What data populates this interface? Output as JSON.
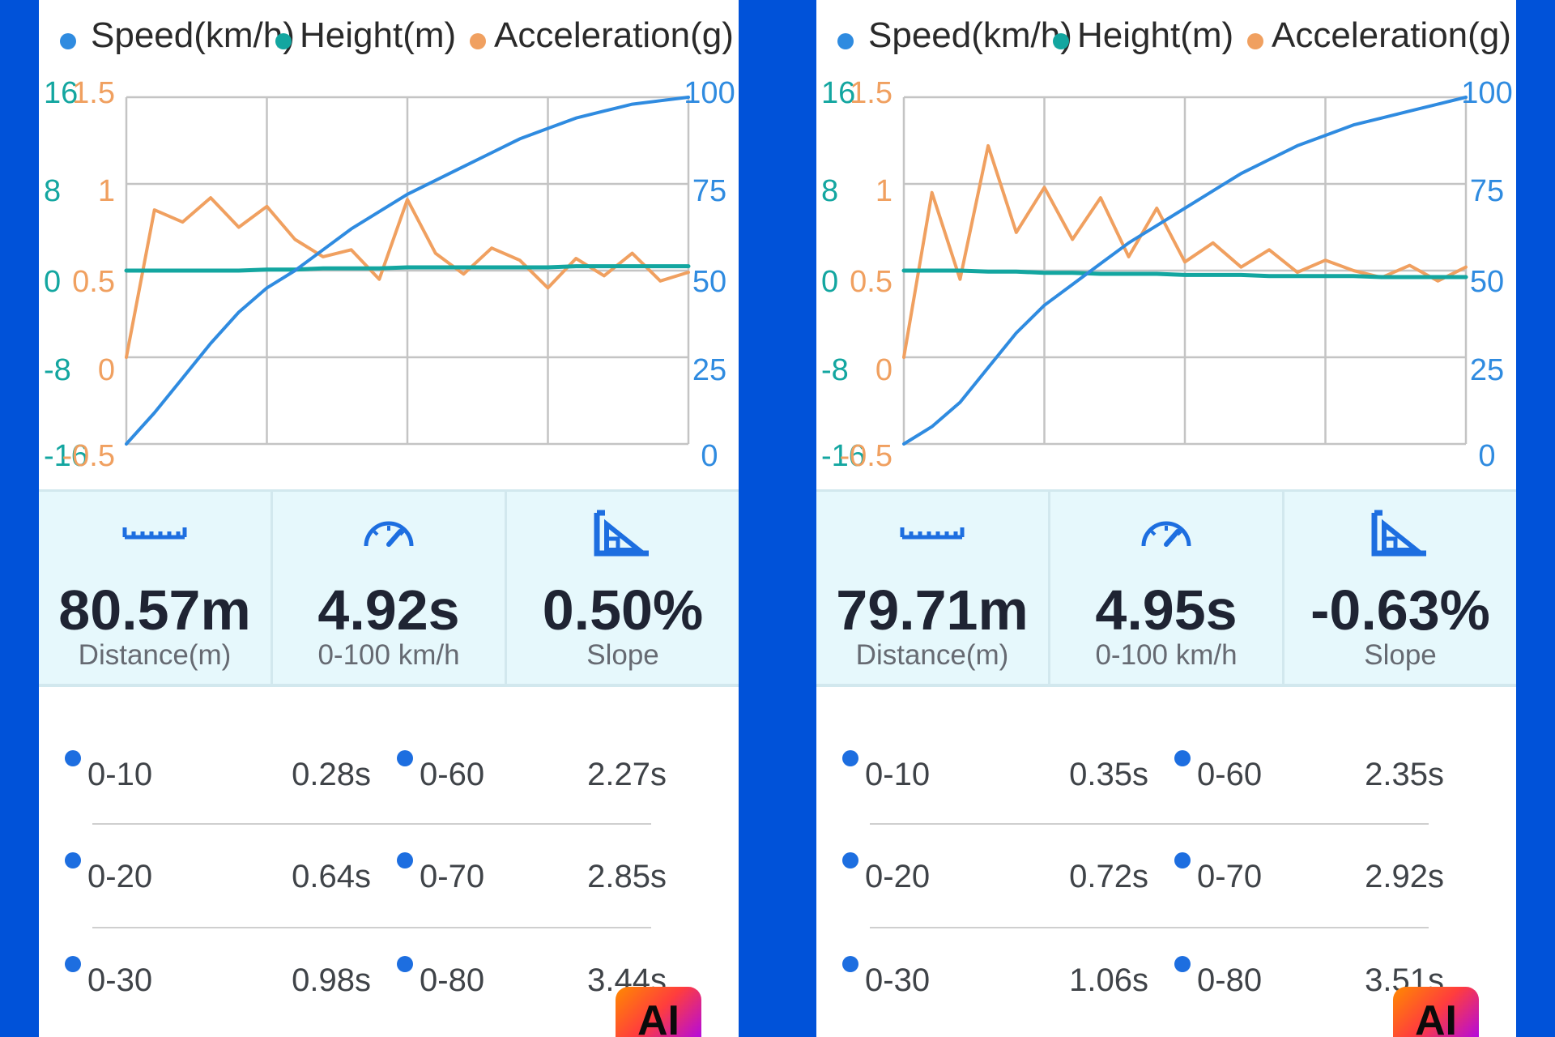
{
  "legend": {
    "speed": "Speed(km/h)",
    "height": "Height(m)",
    "acceleration": "Acceleration(g)"
  },
  "colors": {
    "speed": "#2f8be0",
    "height": "#13a6a0",
    "acceleration": "#f0a060",
    "background": "#0052d9",
    "stats_bg": "#e6f8fc",
    "icon": "#1d6ee0"
  },
  "axes": {
    "height_ticks": [
      "16",
      "8",
      "0",
      "-8",
      "-16"
    ],
    "accel_ticks": [
      "1.5",
      "1",
      "0.5",
      "0",
      "-0.5"
    ],
    "speed_ticks": [
      "100",
      "75",
      "50",
      "25",
      "0"
    ]
  },
  "runs": [
    {
      "stats": [
        {
          "icon": "ruler-icon",
          "value": "80.57m",
          "label": "Distance(m)"
        },
        {
          "icon": "speedometer-icon",
          "value": "4.92s",
          "label": "0-100 km/h"
        },
        {
          "icon": "slope-icon",
          "value": "0.50%",
          "label": "Slope"
        }
      ],
      "splits": [
        {
          "label": "0-10",
          "time": "0.28s"
        },
        {
          "label": "0-60",
          "time": "2.27s"
        },
        {
          "label": "0-20",
          "time": "0.64s"
        },
        {
          "label": "0-70",
          "time": "2.85s"
        },
        {
          "label": "0-30",
          "time": "0.98s"
        },
        {
          "label": "0-80",
          "time": "3.44s"
        }
      ],
      "badge": "AI"
    },
    {
      "stats": [
        {
          "icon": "ruler-icon",
          "value": "79.71m",
          "label": "Distance(m)"
        },
        {
          "icon": "speedometer-icon",
          "value": "4.95s",
          "label": "0-100 km/h"
        },
        {
          "icon": "slope-icon",
          "value": "-0.63%",
          "label": "Slope"
        }
      ],
      "splits": [
        {
          "label": "0-10",
          "time": "0.35s"
        },
        {
          "label": "0-60",
          "time": "2.35s"
        },
        {
          "label": "0-20",
          "time": "0.72s"
        },
        {
          "label": "0-70",
          "time": "2.92s"
        },
        {
          "label": "0-30",
          "time": "1.06s"
        },
        {
          "label": "0-80",
          "time": "3.51s"
        }
      ],
      "badge": "AI"
    }
  ],
  "chart_data": [
    {
      "type": "line",
      "x": [
        0,
        5,
        10,
        15,
        20,
        25,
        30,
        35,
        40,
        45,
        50,
        55,
        60,
        65,
        70,
        75,
        80,
        85,
        90,
        95,
        100
      ],
      "y_axes": {
        "height": [
          -16,
          16
        ],
        "acceleration": [
          -0.5,
          1.5
        ],
        "speed": [
          0,
          100
        ]
      },
      "grid": true,
      "legend_position": "top",
      "series": [
        {
          "name": "Speed(km/h)",
          "axis": "speed",
          "color": "#2f8be0",
          "values": [
            0,
            9,
            19,
            29,
            38,
            45,
            50,
            56,
            62,
            67,
            72,
            76,
            80,
            84,
            88,
            91,
            94,
            96,
            98,
            99,
            100
          ]
        },
        {
          "name": "Height(m)",
          "axis": "height",
          "color": "#13a6a0",
          "values": [
            0,
            0,
            0,
            0,
            0,
            0.1,
            0.1,
            0.2,
            0.2,
            0.2,
            0.3,
            0.3,
            0.3,
            0.3,
            0.3,
            0.3,
            0.4,
            0.4,
            0.4,
            0.4,
            0.4
          ]
        },
        {
          "name": "Acceleration(g)",
          "axis": "acceleration",
          "color": "#f0a060",
          "values": [
            0,
            0.85,
            0.78,
            0.92,
            0.75,
            0.87,
            0.68,
            0.58,
            0.62,
            0.45,
            0.91,
            0.6,
            0.48,
            0.63,
            0.56,
            0.4,
            0.57,
            0.47,
            0.6,
            0.44,
            0.49
          ]
        }
      ]
    },
    {
      "type": "line",
      "x": [
        0,
        5,
        10,
        15,
        20,
        25,
        30,
        35,
        40,
        45,
        50,
        55,
        60,
        65,
        70,
        75,
        80,
        85,
        90,
        95,
        100
      ],
      "y_axes": {
        "height": [
          -16,
          16
        ],
        "acceleration": [
          -0.5,
          1.5
        ],
        "speed": [
          0,
          100
        ]
      },
      "grid": true,
      "legend_position": "top",
      "series": [
        {
          "name": "Speed(km/h)",
          "axis": "speed",
          "color": "#2f8be0",
          "values": [
            0,
            5,
            12,
            22,
            32,
            40,
            46,
            52,
            58,
            63,
            68,
            73,
            78,
            82,
            86,
            89,
            92,
            94,
            96,
            98,
            100
          ]
        },
        {
          "name": "Height(m)",
          "axis": "height",
          "color": "#13a6a0",
          "values": [
            0,
            0,
            0,
            -0.1,
            -0.1,
            -0.2,
            -0.2,
            -0.3,
            -0.3,
            -0.3,
            -0.4,
            -0.4,
            -0.4,
            -0.5,
            -0.5,
            -0.5,
            -0.5,
            -0.6,
            -0.6,
            -0.6,
            -0.6
          ]
        },
        {
          "name": "Acceleration(g)",
          "axis": "acceleration",
          "color": "#f0a060",
          "values": [
            0,
            0.95,
            0.45,
            1.22,
            0.72,
            0.98,
            0.68,
            0.92,
            0.58,
            0.86,
            0.55,
            0.66,
            0.52,
            0.62,
            0.49,
            0.56,
            0.5,
            0.46,
            0.53,
            0.44,
            0.52
          ]
        }
      ]
    }
  ]
}
